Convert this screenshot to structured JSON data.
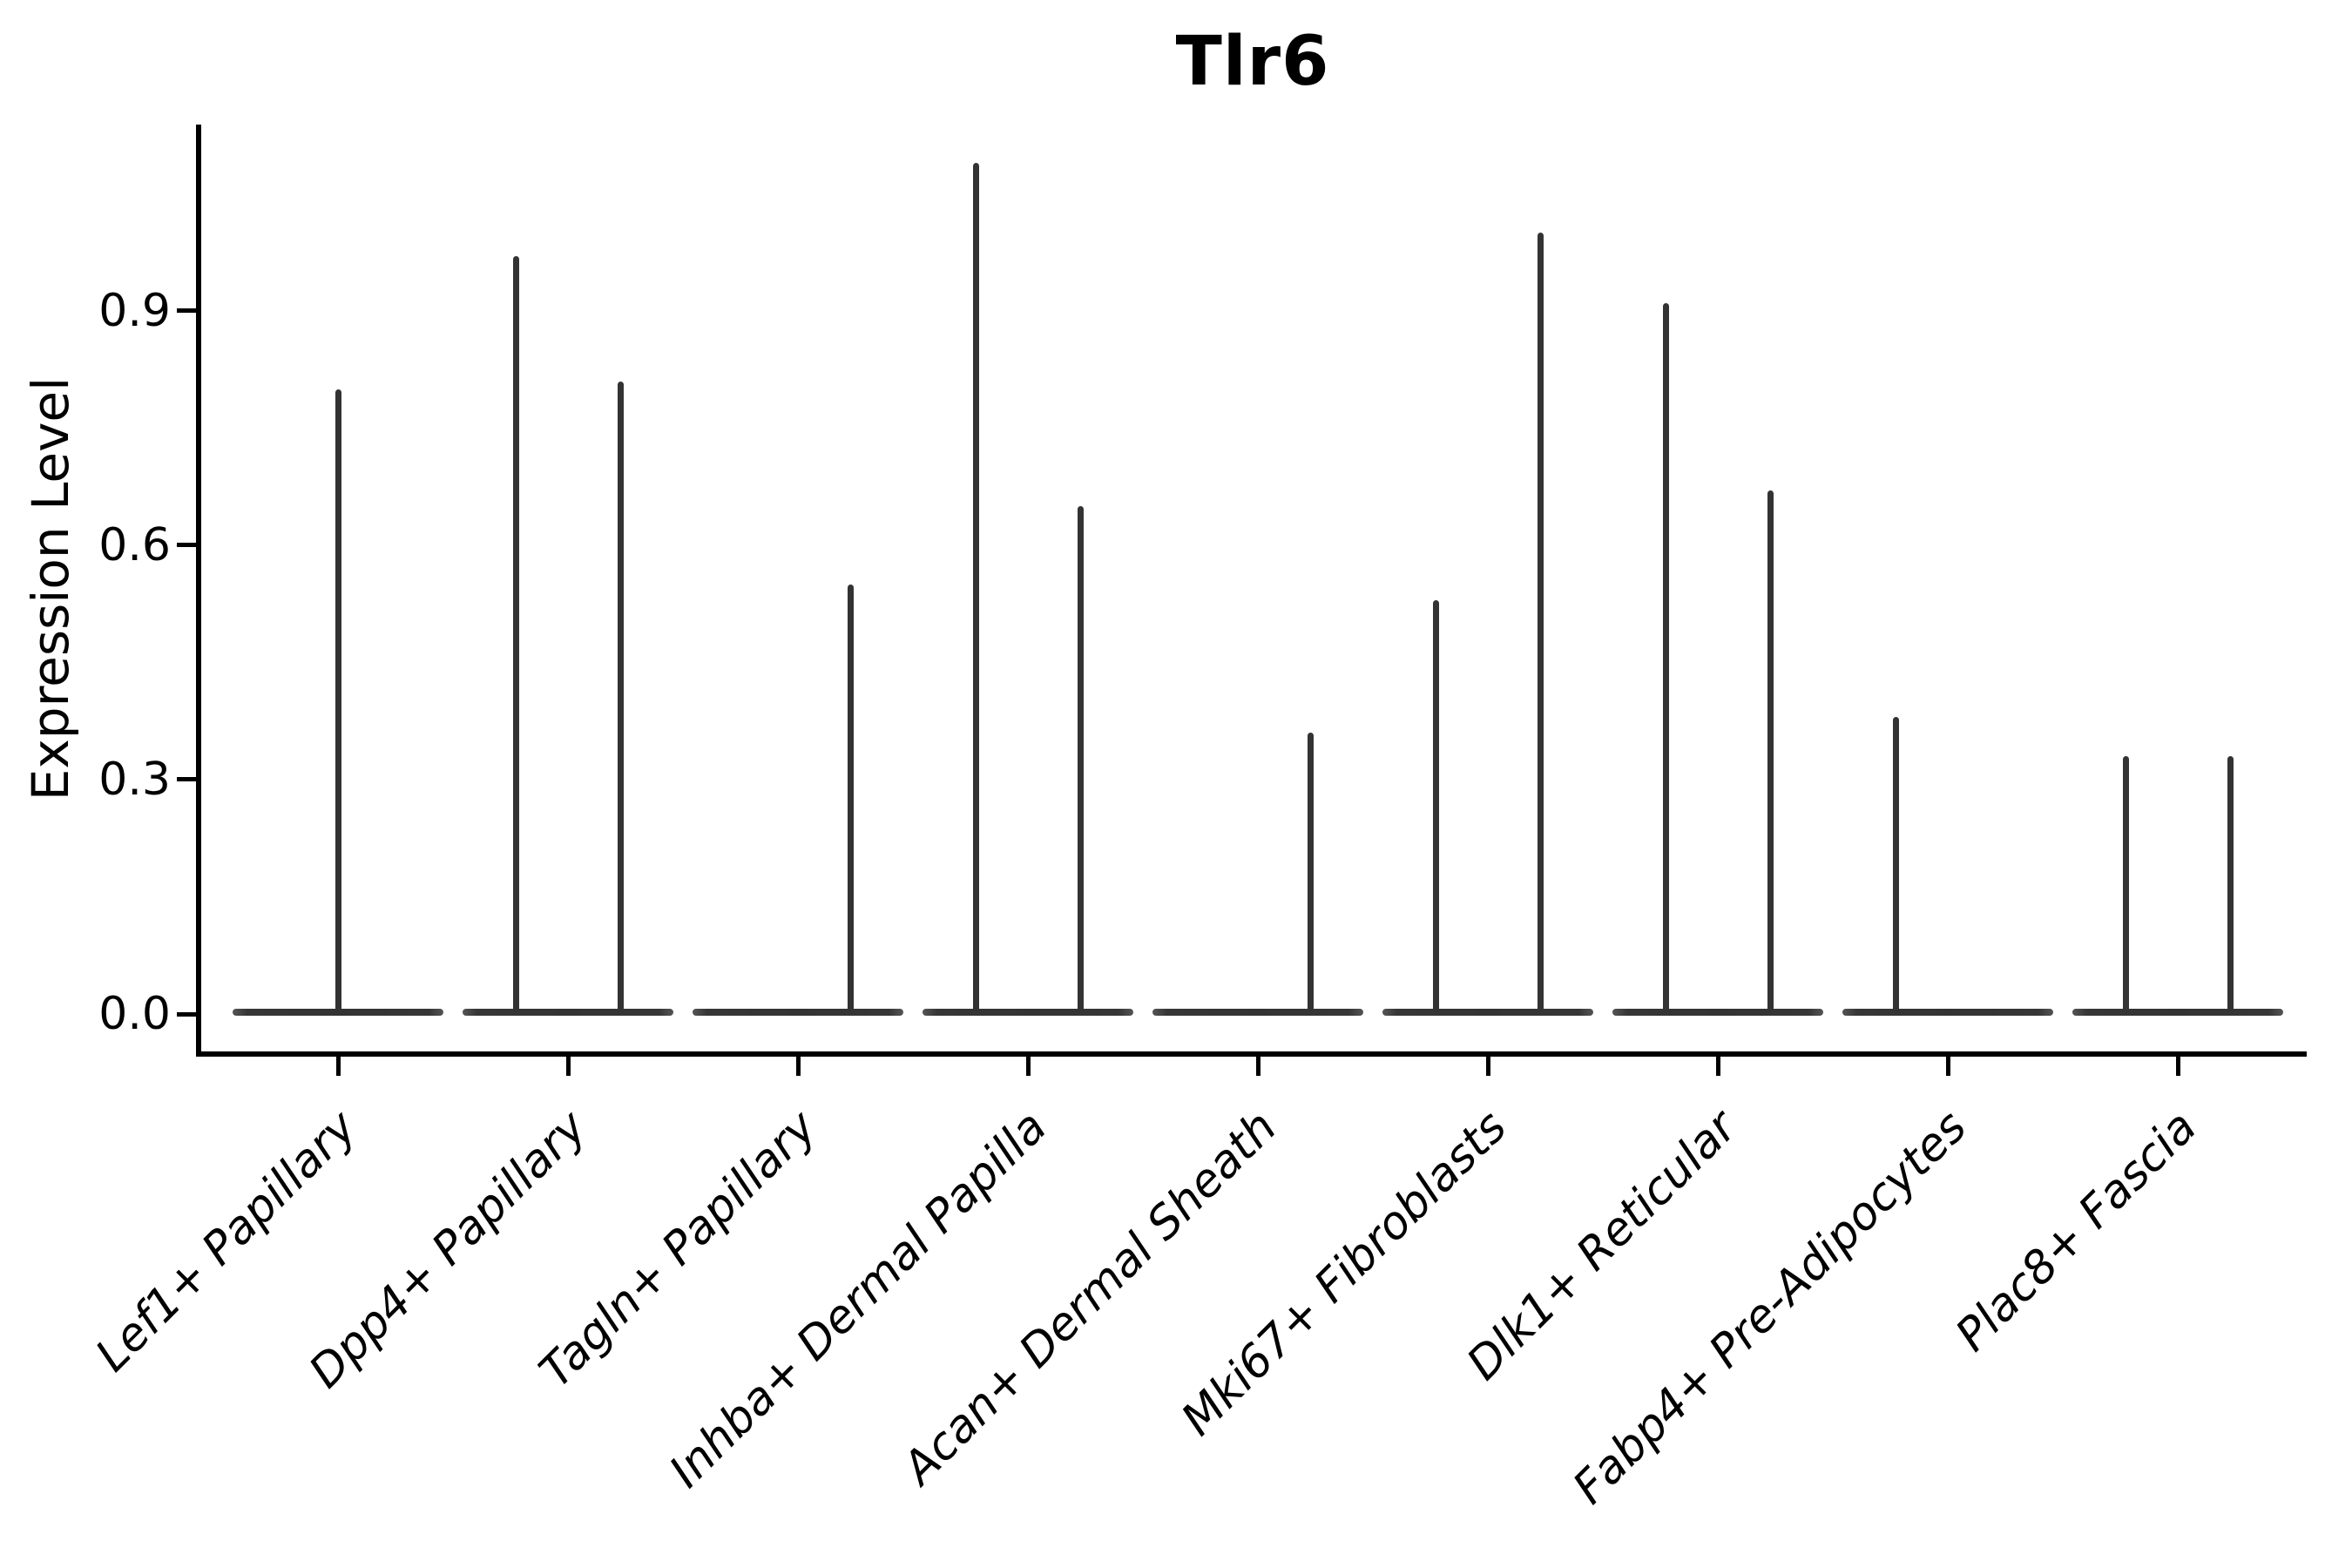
{
  "chart_data": {
    "type": "violin",
    "title": "Tlr6",
    "ylabel": "Expression Level",
    "xlabel": "",
    "ylim": [
      0,
      1.14
    ],
    "yticks": [
      {
        "value": 0.0,
        "label": "0.0"
      },
      {
        "value": 0.3,
        "label": "0.3"
      },
      {
        "value": 0.6,
        "label": "0.6"
      },
      {
        "value": 0.9,
        "label": "0.9"
      }
    ],
    "grid": false,
    "legend": "none",
    "x_label_rotation_deg": 45,
    "x_label_style": "italic",
    "colors": {
      "violin": "#333333",
      "axis": "#000000",
      "background": "#ffffff",
      "text": "#000000"
    },
    "all_categories_have_mass_at_zero": true,
    "categories": [
      "Lef1+ Papillary",
      "Dpp4+ Papillary",
      "Tagln+ Papillary",
      "Inhba+ Dermal Papilla",
      "Acan+ Dermal Sheath",
      "Mki67+ Fibroblasts",
      "Dlk1+ Reticular",
      "Fabp4+ Pre-Adipocytes",
      "Plac8+ Fascia"
    ],
    "violins": [
      {
        "category": "Lef1+ Papillary",
        "spikes": [
          {
            "side": "center",
            "max_expression": 0.8
          }
        ]
      },
      {
        "category": "Dpp4+ Papillary",
        "spikes": [
          {
            "side": "left",
            "max_expression": 0.97
          },
          {
            "side": "right",
            "max_expression": 0.81
          }
        ]
      },
      {
        "category": "Tagln+ Papillary",
        "spikes": [
          {
            "side": "right",
            "max_expression": 0.55
          }
        ]
      },
      {
        "category": "Inhba+ Dermal Papilla",
        "spikes": [
          {
            "side": "left",
            "max_expression": 1.09
          },
          {
            "side": "right",
            "max_expression": 0.65
          }
        ]
      },
      {
        "category": "Acan+ Dermal Sheath",
        "spikes": [
          {
            "side": "right",
            "max_expression": 0.36
          }
        ]
      },
      {
        "category": "Mki67+ Fibroblasts",
        "spikes": [
          {
            "side": "left",
            "max_expression": 0.53
          },
          {
            "side": "right",
            "max_expression": 1.0
          }
        ]
      },
      {
        "category": "Dlk1+ Reticular",
        "spikes": [
          {
            "side": "left",
            "max_expression": 0.91
          },
          {
            "side": "right",
            "max_expression": 0.67
          }
        ]
      },
      {
        "category": "Fabp4+ Pre-Adipocytes",
        "spikes": [
          {
            "side": "left",
            "max_expression": 0.38
          }
        ]
      },
      {
        "category": "Plac8+ Fascia",
        "spikes": [
          {
            "side": "left",
            "max_expression": 0.33
          },
          {
            "side": "right",
            "max_expression": 0.33
          }
        ]
      }
    ]
  }
}
